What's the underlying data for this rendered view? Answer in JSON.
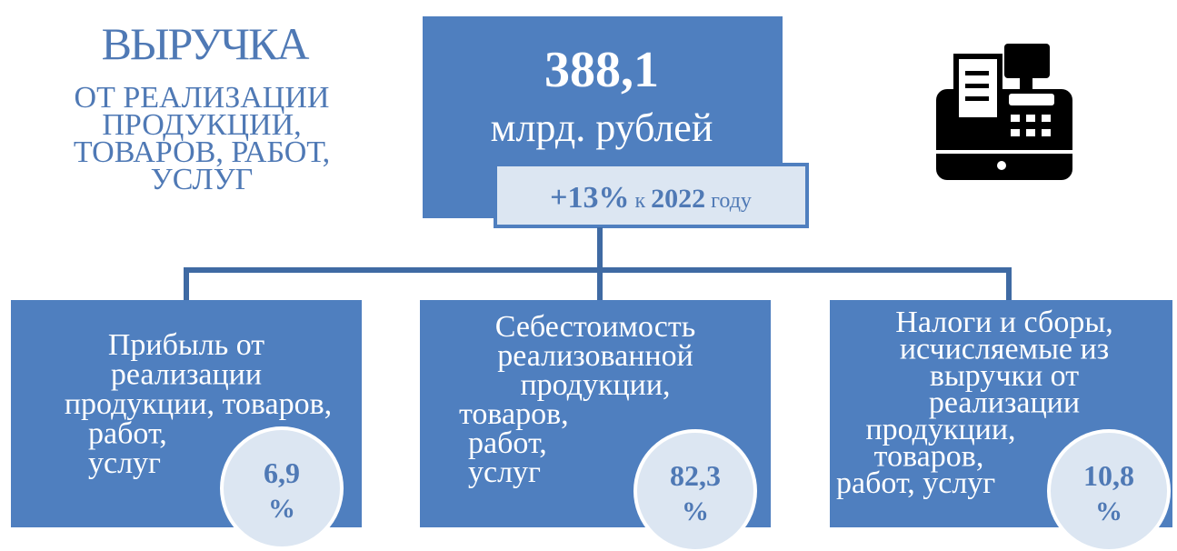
{
  "header": {
    "title": "ВЫРУЧКА",
    "subtitle_lines": [
      "ОТ РЕАЛИЗАЦИИ",
      "ПРОДУКЦИИ,",
      "ТОВАРОВ, РАБОТ,",
      "УСЛУГ"
    ]
  },
  "total": {
    "value": "388,1",
    "unit": "млрд. рублей",
    "change": {
      "percent": "+13%",
      "prefix": "к",
      "year": "2022",
      "suffix": "году"
    }
  },
  "parts": [
    {
      "label_lines": [
        "Прибыль от",
        "реализации",
        "продукции, товаров,",
        "работ,",
        "услуг"
      ],
      "share": "6,9",
      "unit": "%"
    },
    {
      "label_lines": [
        "Себестоимость",
        "реализованной",
        "продукции,",
        "товаров,",
        "работ,",
        "услуг"
      ],
      "share": "82,3",
      "unit": "%"
    },
    {
      "label_lines": [
        "Налоги и сборы,",
        "исчисляемые из",
        "выручки от",
        "реализации",
        "продукции,",
        "товаров,",
        "работ, услуг"
      ],
      "share": "10,8",
      "unit": "%"
    }
  ]
}
